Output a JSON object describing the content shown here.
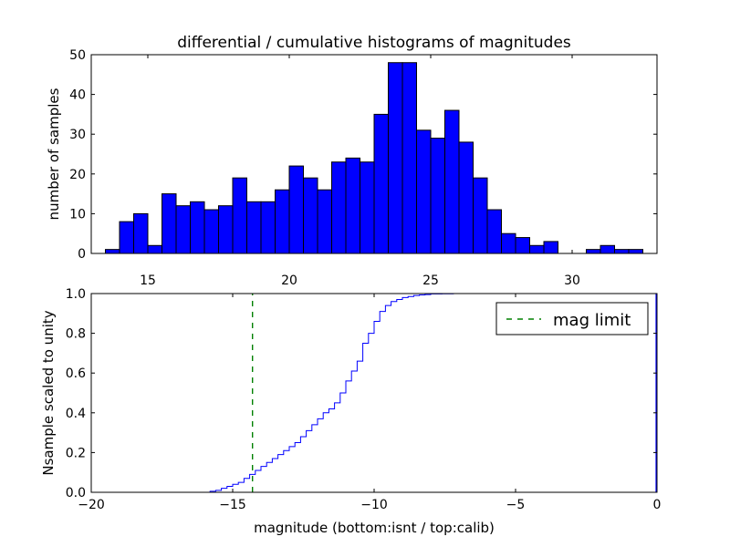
{
  "chart_data": [
    {
      "type": "bar",
      "title": "differential / cumulative histograms of magnitudes",
      "xlabel": "",
      "ylabel": "number of samples",
      "xlim": [
        13.0,
        33.0
      ],
      "ylim": [
        0,
        50
      ],
      "xticks": [
        15,
        20,
        25,
        30
      ],
      "xtick_labels": [
        "15",
        "20",
        "25",
        "30"
      ],
      "yticks": [
        0,
        10,
        20,
        30,
        40,
        50
      ],
      "ytick_labels": [
        "0",
        "10",
        "20",
        "30",
        "40",
        "50"
      ],
      "bin_start": 13.5,
      "bin_width": 0.5,
      "values": [
        1,
        8,
        10,
        2,
        15,
        12,
        13,
        11,
        12,
        19,
        13,
        13,
        16,
        22,
        19,
        16,
        23,
        24,
        23,
        35,
        48,
        48,
        31,
        29,
        36,
        28,
        19,
        11,
        5,
        4,
        2,
        3,
        0,
        0,
        1,
        2,
        1,
        1
      ],
      "color": "#0000ff"
    },
    {
      "type": "line",
      "title": "",
      "xlabel": "magnitude (bottom:isnt / top:calib)",
      "ylabel": "Nsample scaled to unity",
      "xlim": [
        -20,
        0
      ],
      "ylim": [
        0.0,
        1.0
      ],
      "xticks": [
        -20,
        -15,
        -10,
        -5,
        0
      ],
      "xtick_labels": [
        "−20",
        "−15",
        "−10",
        "−5",
        "0"
      ],
      "yticks": [
        0.0,
        0.2,
        0.4,
        0.6,
        0.8,
        1.0
      ],
      "ytick_labels": [
        "0.0",
        "0.2",
        "0.4",
        "0.6",
        "0.8",
        "1.0"
      ],
      "series": [
        {
          "name": "cumulative",
          "style": "step",
          "color": "#0000ff",
          "x": [
            -20,
            -15.8,
            -15.6,
            -15.4,
            -15.2,
            -15.0,
            -14.8,
            -14.6,
            -14.4,
            -14.2,
            -14.0,
            -13.8,
            -13.6,
            -13.4,
            -13.2,
            -13.0,
            -12.8,
            -12.6,
            -12.4,
            -12.2,
            -12.0,
            -11.8,
            -11.6,
            -11.4,
            -11.2,
            -11.0,
            -10.8,
            -10.6,
            -10.4,
            -10.2,
            -10.0,
            -9.8,
            -9.6,
            -9.4,
            -9.2,
            -9.0,
            -8.8,
            -8.6,
            -8.4,
            -8.2,
            -8.0,
            -7.6,
            -7.2
          ],
          "y": [
            0.0,
            0.005,
            0.01,
            0.02,
            0.03,
            0.04,
            0.05,
            0.07,
            0.09,
            0.11,
            0.13,
            0.15,
            0.17,
            0.19,
            0.21,
            0.23,
            0.25,
            0.28,
            0.31,
            0.34,
            0.37,
            0.4,
            0.42,
            0.45,
            0.5,
            0.56,
            0.61,
            0.66,
            0.75,
            0.8,
            0.86,
            0.91,
            0.94,
            0.96,
            0.97,
            0.98,
            0.985,
            0.99,
            0.993,
            0.995,
            0.998,
            0.999,
            1.0
          ]
        },
        {
          "name": "mag limit",
          "style": "dashed-vertical",
          "color": "#008000",
          "x_value": -14.3
        }
      ],
      "legend": {
        "position": "top-right",
        "entries": [
          "mag limit"
        ]
      }
    }
  ]
}
